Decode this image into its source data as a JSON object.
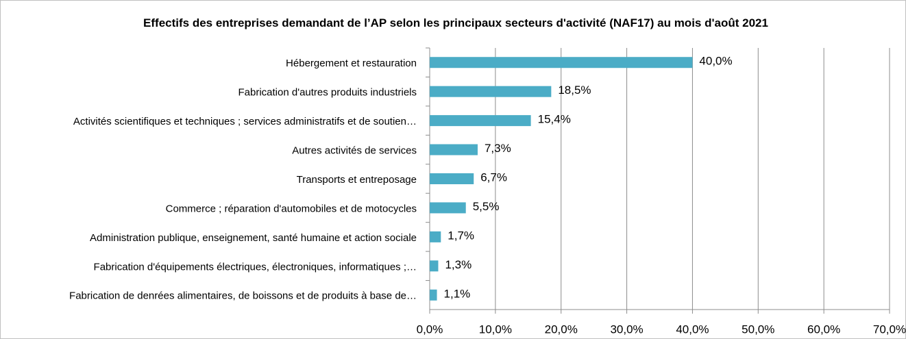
{
  "chart_data": {
    "type": "bar",
    "orientation": "horizontal",
    "title": "Effectifs des entreprises demandant de l’AP selon les principaux secteurs d'activité (NAF17) au mois d'août 2021",
    "categories": [
      "Hébergement et restauration",
      "Fabrication d'autres produits industriels",
      "Activités scientifiques et techniques ; services administratifs et de soutien…",
      "Autres activités de services",
      "Transports et entreposage",
      "Commerce ; réparation d'automobiles et de motocycles",
      "Administration publique, enseignement, santé humaine et action sociale",
      "Fabrication d'équipements électriques, électroniques, informatiques ;…",
      "Fabrication de denrées alimentaires, de boissons et  de produits à base de…"
    ],
    "values": [
      40.0,
      18.5,
      15.4,
      7.3,
      6.7,
      5.5,
      1.7,
      1.3,
      1.1
    ],
    "value_labels": [
      "40,0%",
      "18,5%",
      "15,4%",
      "7,3%",
      "6,7%",
      "5,5%",
      "1,7%",
      "1,3%",
      "1,1%"
    ],
    "color": "#4bacc6",
    "xlim": [
      0,
      70
    ],
    "xticks": [
      {
        "value": 0,
        "label": "0,0%"
      },
      {
        "value": 10,
        "label": "10,0%"
      },
      {
        "value": 20,
        "label": "20,0%"
      },
      {
        "value": 30,
        "label": "30,0%"
      },
      {
        "value": 40,
        "label": "40,0%"
      },
      {
        "value": 50,
        "label": "50,0%"
      },
      {
        "value": 60,
        "label": "60,0%"
      },
      {
        "value": 70,
        "label": "70,0%"
      }
    ],
    "grid": true
  }
}
